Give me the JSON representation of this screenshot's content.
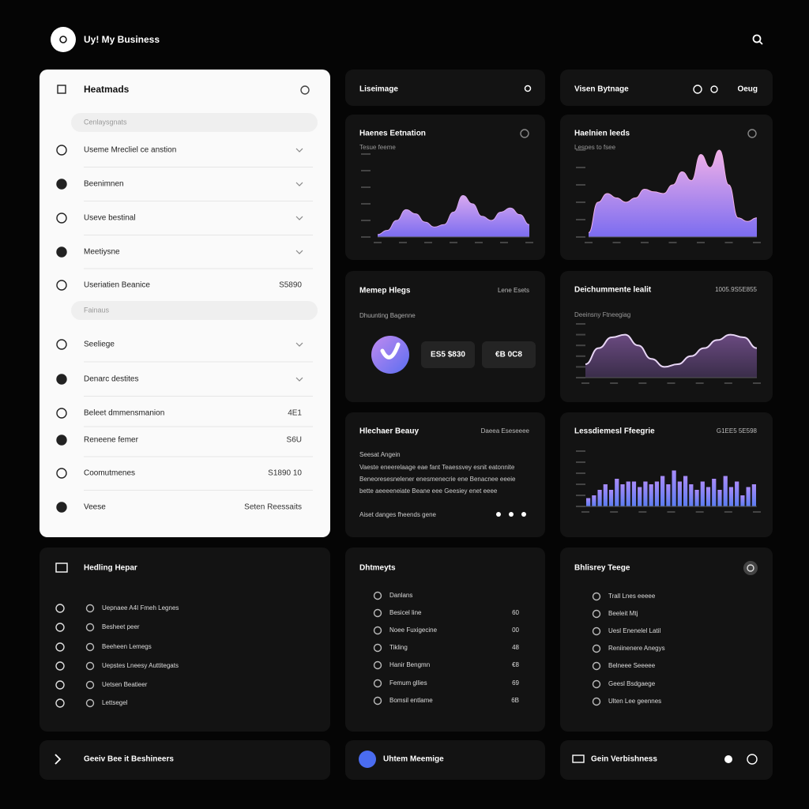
{
  "header": {
    "title": "Uy! My Business"
  },
  "sidebar": {
    "title": "Heatmads",
    "groups": [
      {
        "label": "Cenlaysgnats",
        "items": [
          {
            "label": "Useme Mrecliel ce anstion"
          },
          {
            "label": "Beenimnen"
          },
          {
            "label": "Useve bestinal"
          },
          {
            "label": "Meetiysne"
          },
          {
            "label": "Useriatien Beanice",
            "value": "S5890"
          }
        ]
      },
      {
        "label": "Fainaus",
        "items": [
          {
            "label": "Seeliege"
          },
          {
            "label": "Denarc destites"
          },
          {
            "label": "Beleet dmmensmanion",
            "value": "4E1"
          },
          {
            "label": "Reneene femer",
            "value": "S6U"
          },
          {
            "label": "Coomutmenes",
            "value": "S1890 10"
          },
          {
            "label": "Veese",
            "value": "Seten Reessaits"
          }
        ]
      }
    ]
  },
  "top_cards": [
    {
      "title": "Liseimage"
    },
    {
      "title": "Visen Bytnage",
      "action": "Oeug"
    }
  ],
  "charts": [
    {
      "type": "area",
      "title": "Haenes Eetnation",
      "subtitle": "Tesue feeme",
      "color": "#7b6cf0",
      "color_top": "#d8a8f0",
      "ylim": [
        0,
        100
      ],
      "values": [
        3,
        8,
        20,
        33,
        28,
        18,
        12,
        15,
        30,
        50,
        40,
        25,
        20,
        30,
        35,
        27,
        15
      ]
    },
    {
      "type": "area",
      "title": "Haelnien leeds",
      "subtitle": "Lespes to fsee",
      "color": "#7b6cf0",
      "color_top": "#f0b0e8",
      "ylim": [
        0,
        100
      ],
      "values": [
        5,
        40,
        50,
        45,
        40,
        45,
        55,
        52,
        50,
        60,
        75,
        65,
        95,
        80,
        100,
        60,
        22,
        18,
        22
      ]
    },
    {
      "type": "area",
      "title": "Deichummente lealit",
      "subtitle": "Deeinsny Ftneegiag",
      "right": "1005.9S5E855",
      "color": "#3a2d4a",
      "color_top": "#6a4a80",
      "ylim": [
        0,
        100
      ],
      "values": [
        25,
        55,
        75,
        80,
        60,
        35,
        20,
        25,
        40,
        55,
        70,
        80,
        75,
        55
      ]
    },
    {
      "type": "bar",
      "title": "Lessdiemesl Ffeegrie",
      "right": "G1EE5 5E598",
      "color": "#5b7cf0",
      "color_top": "#a78bfa",
      "ylim": [
        0,
        100
      ],
      "values": [
        15,
        20,
        30,
        40,
        30,
        50,
        40,
        45,
        45,
        35,
        45,
        40,
        45,
        55,
        40,
        65,
        45,
        55,
        40,
        30,
        45,
        35,
        50,
        30,
        55,
        35,
        45,
        20,
        35,
        40
      ]
    }
  ],
  "metrics_card": {
    "title": "Memep Hlegs",
    "right": "Lene Esets",
    "subtitle": "Dhuunting Bagenne",
    "boxes": [
      "ES5 $830",
      "€B 0C8"
    ]
  },
  "text_card": {
    "title": "Hlechaer Beauy",
    "right": "Daeea Eseseeee",
    "subtitle": "Seesat Angein",
    "lines": [
      "Vaeste eneerelaage eae fant Teaessvey esnit eatonnite",
      "Beneoresesnelener enesmenecrie ene Benacnee eeeie",
      "bette aeeeeneiate Beane eee Geesiey enet eeee"
    ],
    "footer": "Aiset danges fheends gene"
  },
  "lists": [
    {
      "title": "Hedling Hepar",
      "items": [
        {
          "label": "Uepnaee A4I Fmeh Legnes"
        },
        {
          "label": "Besheet peer"
        },
        {
          "label": "Beeheen Lemegs"
        },
        {
          "label": "Uepstes Lneesy Auttitegats"
        },
        {
          "label": "Uetsen Beatieer"
        },
        {
          "label": "Lettsegel"
        }
      ]
    },
    {
      "title": "Dhtmeyts",
      "items": [
        {
          "label": "Danlans"
        },
        {
          "label": "Besicel line",
          "value": "60"
        },
        {
          "label": "Noee Fuxigecine",
          "value": "00"
        },
        {
          "label": "Tikling",
          "value": "48"
        },
        {
          "label": "Hanir Bengmn",
          "value": "€8"
        },
        {
          "label": "Femum gllies",
          "value": "69"
        },
        {
          "label": "Bomsil entlame",
          "value": "6B"
        }
      ]
    },
    {
      "title": "Bhlisrey Teege",
      "items": [
        {
          "label": "Trall Lnes eeeee"
        },
        {
          "label": "Beeleit Mtj"
        },
        {
          "label": "Uesl Enenelel Latil"
        },
        {
          "label": "Reniinenere Anegys"
        },
        {
          "label": "Belneee Seeeee"
        },
        {
          "label": "Geesl Bsdgaege"
        },
        {
          "label": "Ulten Lee geennes"
        }
      ]
    }
  ],
  "footers": [
    "Geeiv Bee it Beshineers",
    "Uhtem Meemige",
    "Gein Verbishness"
  ]
}
